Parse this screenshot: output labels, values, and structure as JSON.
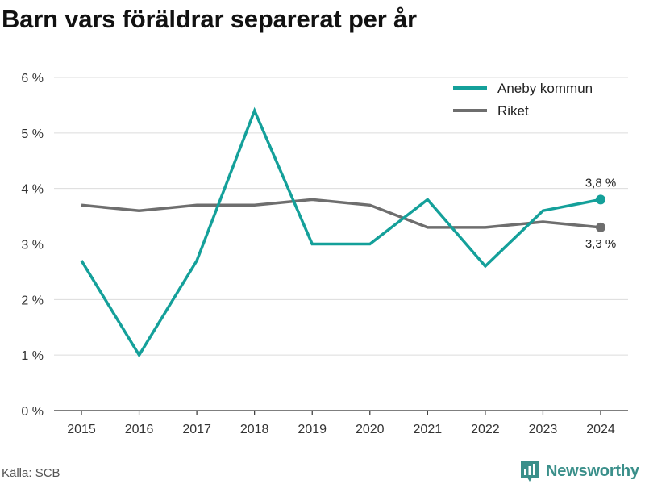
{
  "title": "Barn vars föräldrar separerat per år",
  "source": "Källa: SCB",
  "brand": {
    "name": "Newsworthy",
    "color": "#3a8f8a"
  },
  "chart_data": {
    "type": "line",
    "x": [
      2015,
      2016,
      2017,
      2018,
      2019,
      2020,
      2021,
      2022,
      2023,
      2024
    ],
    "series": [
      {
        "name": "Aneby kommun",
        "color": "#14a09a",
        "values": [
          2.7,
          1.0,
          2.7,
          5.4,
          3.0,
          3.0,
          3.8,
          2.6,
          3.6,
          3.8
        ],
        "end_label": "3,8 %"
      },
      {
        "name": "Riket",
        "color": "#6e6e6e",
        "values": [
          3.7,
          3.6,
          3.7,
          3.7,
          3.8,
          3.7,
          3.3,
          3.3,
          3.4,
          3.3
        ],
        "end_label": "3,3 %"
      }
    ],
    "y_ticks": [
      {
        "value": 0,
        "label": "0 %"
      },
      {
        "value": 1,
        "label": "1 %"
      },
      {
        "value": 2,
        "label": "2 %"
      },
      {
        "value": 3,
        "label": "3 %"
      },
      {
        "value": 4,
        "label": "4 %"
      },
      {
        "value": 5,
        "label": "5 %"
      },
      {
        "value": 6,
        "label": "6 %"
      }
    ],
    "ylim": [
      0,
      6
    ],
    "grid": true,
    "legend_position": "top-right",
    "title": "Barn vars föräldrar separerat per år",
    "xlabel": "",
    "ylabel": ""
  }
}
